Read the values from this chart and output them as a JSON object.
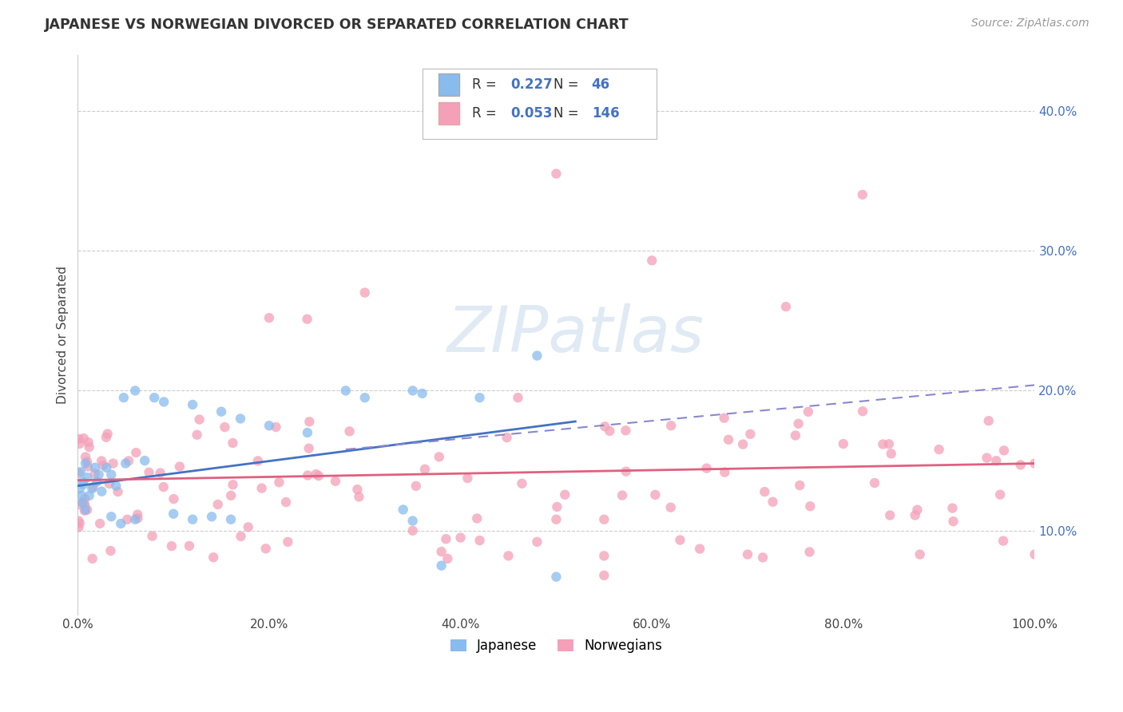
{
  "title": "JAPANESE VS NORWEGIAN DIVORCED OR SEPARATED CORRELATION CHART",
  "source": "Source: ZipAtlas.com",
  "ylabel": "Divorced or Separated",
  "legend_label1": "Japanese",
  "legend_label2": "Norwegians",
  "R1": 0.227,
  "N1": 46,
  "R2": 0.053,
  "N2": 146,
  "color_japanese": "#88bbee",
  "color_norwegian": "#f4a0b8",
  "color_line_japanese": "#4472c4",
  "color_line_norwegian": "#e06080",
  "color_dashed": "#8888cc",
  "xlim": [
    0.0,
    1.0
  ],
  "ylim": [
    0.04,
    0.44
  ],
  "x_ticks": [
    0.0,
    0.2,
    0.4,
    0.6,
    0.8,
    1.0
  ],
  "y_ticks": [
    0.1,
    0.2,
    0.3,
    0.4
  ],
  "background_color": "#ffffff",
  "jap_trend_x": [
    0.0,
    0.52
  ],
  "jap_trend_y": [
    0.132,
    0.178
  ],
  "nor_trend_x": [
    0.0,
    1.0
  ],
  "nor_trend_y": [
    0.136,
    0.148
  ],
  "dash_trend_x": [
    0.28,
    1.0
  ],
  "dash_trend_y": [
    0.158,
    0.204
  ]
}
